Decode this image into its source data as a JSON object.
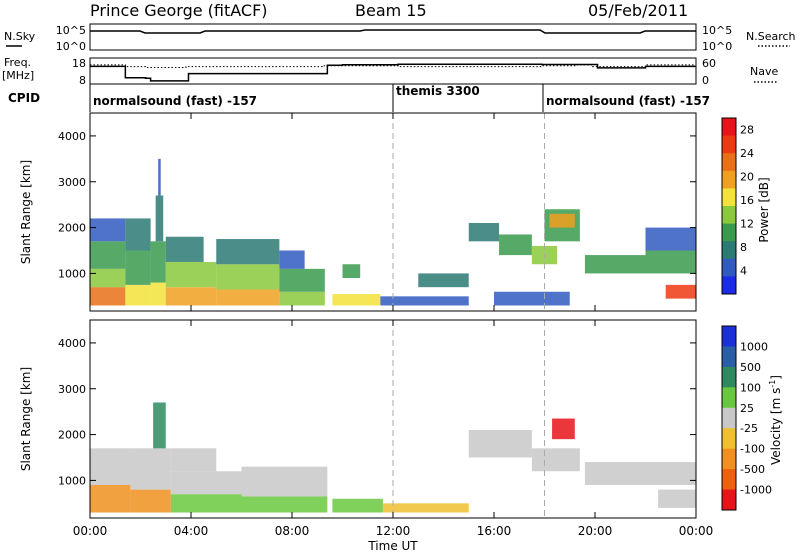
{
  "header": {
    "station": "Prince George (fitACF)",
    "beam": "Beam 15",
    "date": "05/Feb/2011"
  },
  "strip_nsky": {
    "left_label": "N.Sky",
    "left_ticks": [
      "10^5",
      "10^0"
    ],
    "right_label": "N.Search",
    "right_ticks": [
      "10^5",
      "10^0"
    ]
  },
  "strip_freq": {
    "left_label_1": "Freq.",
    "left_label_2": "[MHz]",
    "left_ticks": [
      "18",
      "8"
    ],
    "right_label": "Nave",
    "right_ticks": [
      "60",
      "0"
    ],
    "freq_steps": [
      [
        0,
        14.8
      ],
      [
        1.4,
        10.4
      ],
      [
        2.2,
        10.2
      ],
      [
        2.4,
        9.2
      ],
      [
        3.8,
        9.2
      ],
      [
        3.9,
        12.0
      ],
      [
        9.2,
        12.0
      ],
      [
        9.4,
        15.2
      ],
      [
        10.0,
        15.4
      ],
      [
        12.2,
        15.6
      ],
      [
        13.5,
        15.6
      ],
      [
        17.9,
        15.5
      ],
      [
        19.9,
        15.5
      ],
      [
        20.1,
        14.2
      ],
      [
        22.0,
        14.8
      ],
      [
        24,
        14.8
      ]
    ],
    "nave_steps": [
      [
        0,
        44
      ],
      [
        1.4,
        40
      ],
      [
        2.2,
        38
      ],
      [
        3.8,
        40
      ],
      [
        9.2,
        42
      ],
      [
        12.2,
        40
      ],
      [
        17.9,
        42
      ],
      [
        19.2,
        44
      ],
      [
        19.9,
        40
      ],
      [
        22.0,
        44
      ],
      [
        24,
        46
      ]
    ]
  },
  "cpid": {
    "label": "CPID",
    "segments": [
      {
        "start_h": 0,
        "text": "normalsound (fast) -157"
      },
      {
        "start_h": 12,
        "text": "themis 3300"
      },
      {
        "start_h": 18,
        "text": "normalsound (fast) -157"
      }
    ]
  },
  "x_axis": {
    "label": "Time UT",
    "ticks": [
      "00:00",
      "04:00",
      "08:00",
      "12:00",
      "16:00",
      "20:00",
      "00:00"
    ],
    "tick_hours": [
      0,
      4,
      8,
      12,
      16,
      20,
      24
    ],
    "range_h": [
      0,
      24
    ],
    "dashed_lines_h": [
      12,
      18
    ]
  },
  "chart_data": [
    {
      "type": "heatmap",
      "title": "",
      "xlabel": "Time UT",
      "ylabel": "Slant Range [km]",
      "xlim": [
        0,
        24
      ],
      "ylim": [
        180,
        4500
      ],
      "y_ticks": [
        1000,
        2000,
        3000,
        4000
      ],
      "colorbar": {
        "label": "Power [dB]",
        "ticks": [
          "4",
          "8",
          "12",
          "16",
          "20",
          "24",
          "28"
        ],
        "range": [
          0,
          30
        ],
        "colors": [
          "#1c2be8",
          "#2f5bc0",
          "#2c7a74",
          "#3a9a4e",
          "#8ac83c",
          "#f2e23a",
          "#f0a020",
          "#e87018",
          "#ee3a12",
          "#e8141a"
        ]
      },
      "cells": [
        {
          "t0": 0.0,
          "t1": 1.4,
          "r0": 300,
          "r1": 700,
          "v": 23
        },
        {
          "t0": 0.0,
          "t1": 1.4,
          "r0": 700,
          "r1": 1100,
          "v": 14
        },
        {
          "t0": 0.0,
          "t1": 1.4,
          "r0": 1100,
          "r1": 1700,
          "v": 9
        },
        {
          "t0": 0.0,
          "t1": 1.4,
          "r0": 1700,
          "r1": 2200,
          "v": 5
        },
        {
          "t0": 1.4,
          "t1": 2.4,
          "r0": 300,
          "r1": 750,
          "v": 17
        },
        {
          "t0": 1.4,
          "t1": 2.4,
          "r0": 750,
          "r1": 1500,
          "v": 11
        },
        {
          "t0": 1.4,
          "t1": 2.4,
          "r0": 1500,
          "r1": 2200,
          "v": 6
        },
        {
          "t0": 2.4,
          "t1": 3.0,
          "r0": 300,
          "r1": 800,
          "v": 15
        },
        {
          "t0": 2.4,
          "t1": 3.0,
          "r0": 800,
          "r1": 1700,
          "v": 10
        },
        {
          "t0": 2.6,
          "t1": 2.9,
          "r0": 1700,
          "r1": 2700,
          "v": 7
        },
        {
          "t0": 2.7,
          "t1": 2.8,
          "r0": 2700,
          "r1": 3500,
          "v": 4
        },
        {
          "t0": 3.0,
          "t1": 5.0,
          "r0": 300,
          "r1": 700,
          "v": 20
        },
        {
          "t0": 3.0,
          "t1": 5.0,
          "r0": 700,
          "r1": 1250,
          "v": 12
        },
        {
          "t0": 3.0,
          "t1": 4.5,
          "r0": 1250,
          "r1": 1800,
          "v": 8
        },
        {
          "t0": 5.0,
          "t1": 7.5,
          "r0": 300,
          "r1": 650,
          "v": 18
        },
        {
          "t0": 5.0,
          "t1": 7.5,
          "r0": 650,
          "r1": 1200,
          "v": 12
        },
        {
          "t0": 5.0,
          "t1": 7.5,
          "r0": 1200,
          "r1": 1750,
          "v": 7
        },
        {
          "t0": 7.5,
          "t1": 9.3,
          "r0": 300,
          "r1": 600,
          "v": 14
        },
        {
          "t0": 7.5,
          "t1": 9.3,
          "r0": 600,
          "r1": 1100,
          "v": 9
        },
        {
          "t0": 7.5,
          "t1": 8.5,
          "r0": 1100,
          "r1": 1500,
          "v": 5
        },
        {
          "t0": 9.6,
          "t1": 11.5,
          "r0": 300,
          "r1": 550,
          "v": 16
        },
        {
          "t0": 10.0,
          "t1": 10.7,
          "r0": 900,
          "r1": 1200,
          "v": 10
        },
        {
          "t0": 11.5,
          "t1": 15.0,
          "r0": 300,
          "r1": 500,
          "v": 5
        },
        {
          "t0": 13.0,
          "t1": 15.0,
          "r0": 700,
          "r1": 1000,
          "v": 6
        },
        {
          "t0": 15.0,
          "t1": 16.2,
          "r0": 1700,
          "r1": 2100,
          "v": 6
        },
        {
          "t0": 16.2,
          "t1": 17.5,
          "r0": 1400,
          "r1": 1850,
          "v": 10
        },
        {
          "t0": 17.5,
          "t1": 18.5,
          "r0": 1200,
          "r1": 1600,
          "v": 14
        },
        {
          "t0": 18.0,
          "t1": 19.4,
          "r0": 1700,
          "r1": 2400,
          "v": 9
        },
        {
          "t0": 18.2,
          "t1": 19.2,
          "r0": 2000,
          "r1": 2300,
          "v": 20
        },
        {
          "t0": 19.6,
          "t1": 22.0,
          "r0": 1000,
          "r1": 1400,
          "v": 9
        },
        {
          "t0": 22.0,
          "t1": 24.0,
          "r0": 1000,
          "r1": 1500,
          "v": 11
        },
        {
          "t0": 22.0,
          "t1": 24.0,
          "r0": 1500,
          "r1": 2000,
          "v": 5
        },
        {
          "t0": 22.8,
          "t1": 24.0,
          "r0": 450,
          "r1": 750,
          "v": 24
        },
        {
          "t0": 16.0,
          "t1": 19.0,
          "r0": 300,
          "r1": 600,
          "v": 5
        }
      ]
    },
    {
      "type": "heatmap",
      "title": "",
      "xlabel": "Time UT",
      "ylabel": "Slant Range [km]",
      "xlim": [
        0,
        24
      ],
      "ylim": [
        180,
        4500
      ],
      "y_ticks": [
        1000,
        2000,
        3000,
        4000
      ],
      "colorbar": {
        "label": "Velocity [m s^-1]",
        "ticks": [
          "1000",
          "500",
          "100",
          "25",
          "-25",
          "-100",
          "-500",
          "-1000"
        ],
        "colors": [
          "#1c2fd8",
          "#2a5fa8",
          "#2f8a60",
          "#6ac840",
          "#c8c8c8",
          "#f0c030",
          "#f09020",
          "#ee6010",
          "#e8141a"
        ]
      },
      "cells": [
        {
          "t0": 0.0,
          "t1": 1.6,
          "r0": 300,
          "r1": 900,
          "v": 6
        },
        {
          "t0": 0.0,
          "t1": 1.6,
          "r0": 900,
          "r1": 1700,
          "v": 4
        },
        {
          "t0": 1.6,
          "t1": 3.2,
          "r0": 300,
          "r1": 800,
          "v": 6
        },
        {
          "t0": 1.6,
          "t1": 3.2,
          "r0": 800,
          "r1": 1700,
          "v": 4
        },
        {
          "t0": 2.5,
          "t1": 3.0,
          "r0": 1700,
          "r1": 2700,
          "v": 2
        },
        {
          "t0": 3.2,
          "t1": 6.0,
          "r0": 300,
          "r1": 700,
          "v": 3
        },
        {
          "t0": 3.2,
          "t1": 6.0,
          "r0": 700,
          "r1": 1200,
          "v": 4
        },
        {
          "t0": 3.2,
          "t1": 5.0,
          "r0": 1200,
          "r1": 1700,
          "v": 4
        },
        {
          "t0": 6.0,
          "t1": 9.4,
          "r0": 300,
          "r1": 650,
          "v": 3
        },
        {
          "t0": 6.0,
          "t1": 9.4,
          "r0": 650,
          "r1": 1300,
          "v": 4
        },
        {
          "t0": 9.6,
          "t1": 11.6,
          "r0": 300,
          "r1": 600,
          "v": 3
        },
        {
          "t0": 11.6,
          "t1": 15.0,
          "r0": 300,
          "r1": 500,
          "v": 5
        },
        {
          "t0": 15.0,
          "t1": 17.5,
          "r0": 1500,
          "r1": 2100,
          "v": 4
        },
        {
          "t0": 17.5,
          "t1": 19.4,
          "r0": 1200,
          "r1": 1700,
          "v": 4
        },
        {
          "t0": 18.3,
          "t1": 19.2,
          "r0": 1900,
          "r1": 2350,
          "v": 8
        },
        {
          "t0": 19.6,
          "t1": 24.0,
          "r0": 900,
          "r1": 1400,
          "v": 4
        },
        {
          "t0": 22.5,
          "t1": 24.0,
          "r0": 400,
          "r1": 800,
          "v": 4
        }
      ]
    }
  ]
}
